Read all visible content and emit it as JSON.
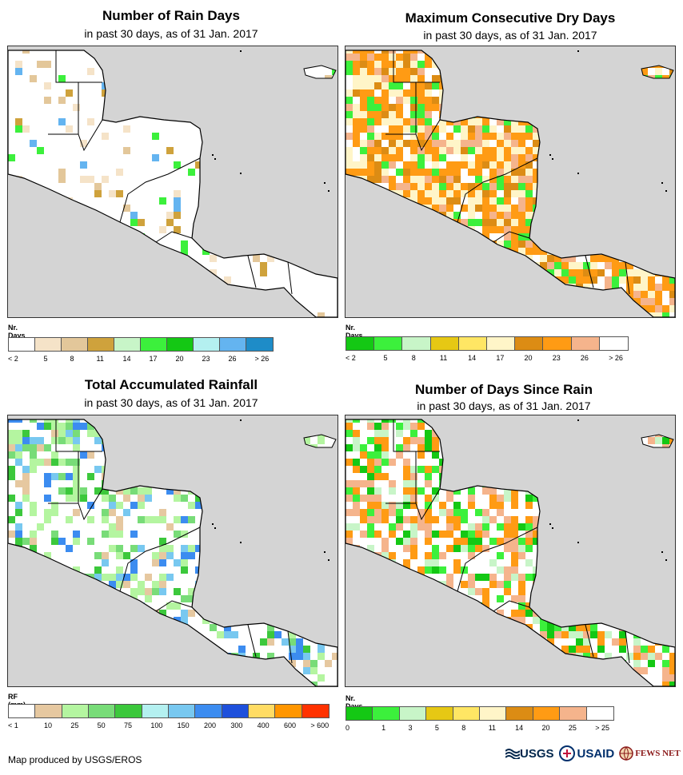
{
  "panels": [
    {
      "title": "Number of Rain Days",
      "subtitle": "in past 30 days, as of 31 Jan. 2017",
      "legend_title": "Nr. Days",
      "colors": [
        "#ffffff",
        "#f5e3c8",
        "#e3c79a",
        "#cfa23c",
        "#c8f5c8",
        "#3cf03c",
        "#14c814",
        "#b4f0f0",
        "#64b4f0",
        "#1e8cc8"
      ],
      "ticks": [
        "< 2",
        "5",
        "8",
        "11",
        "14",
        "17",
        "20",
        "23",
        "26",
        "> 26"
      ],
      "tick_align": "right",
      "theme": "raindays"
    },
    {
      "title": "Maximum Consecutive Dry Days",
      "subtitle": "in past 30 days, as of 31 Jan. 2017",
      "legend_title": "Nr. Days",
      "colors": [
        "#14c814",
        "#3cf03c",
        "#c8f5c8",
        "#e6c814",
        "#ffe664",
        "#fff5c8",
        "#dc8c14",
        "#ff9b14",
        "#f5b48c",
        "#ffffff"
      ],
      "ticks": [
        "< 2",
        "5",
        "8",
        "11",
        "14",
        "17",
        "20",
        "23",
        "26",
        "> 26"
      ],
      "tick_align": "right",
      "theme": "drydays"
    },
    {
      "title": "Total Accumulated Rainfall",
      "subtitle": "in past 30 days, as of 31 Jan. 2017",
      "legend_title": "RF (mm)",
      "colors": [
        "#ffffff",
        "#e6c8a0",
        "#b4f5a0",
        "#78dc78",
        "#3cc83c",
        "#b4f0f0",
        "#78c8f0",
        "#3c8cf0",
        "#1e50dc",
        "#ffdc64",
        "#ff9600",
        "#ff3200"
      ],
      "ticks": [
        "< 1",
        "10",
        "25",
        "50",
        "75",
        "100",
        "150",
        "200",
        "300",
        "400",
        "600",
        "> 600"
      ],
      "tick_align": "right",
      "theme": "rainfall"
    },
    {
      "title": "Number of Days Since Rain",
      "subtitle": "in past 30 days, as of 31 Jan. 2017",
      "legend_title": "Nr. Days",
      "colors": [
        "#14c814",
        "#3cf03c",
        "#c8f5c8",
        "#e6c814",
        "#ffe664",
        "#fff5c8",
        "#dc8c14",
        "#ff9b14",
        "#f5b48c",
        "#ffffff"
      ],
      "ticks": [
        "0",
        "1",
        "3",
        "5",
        "8",
        "11",
        "14",
        "20",
        "25",
        "> 25"
      ],
      "tick_align": "right",
      "theme": "sincerain"
    }
  ],
  "footer": {
    "credit": "Map produced by USGS/EROS",
    "logo_usgs": "USGS",
    "logo_usaid": "USAID",
    "logo_fews": "FEWS NET"
  },
  "land_color": "#ffffff",
  "sea_color": "#d4d4d4",
  "outline_color": "#000000"
}
